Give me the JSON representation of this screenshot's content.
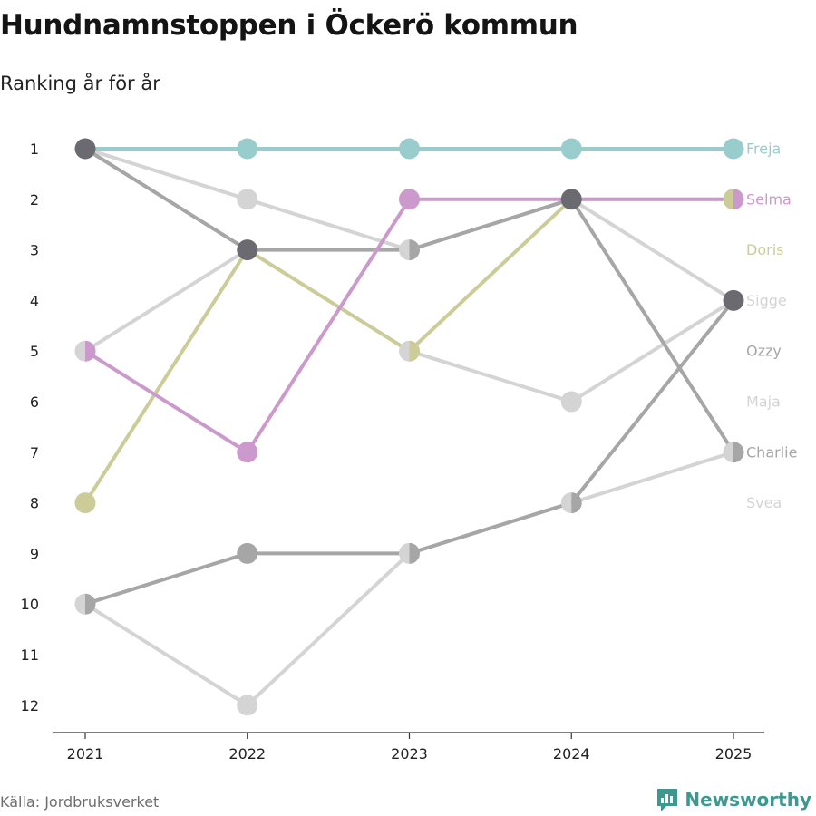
{
  "header": {
    "title": "Hundnamnstoppen i Öckerö kommun",
    "subtitle": "Ranking år för år"
  },
  "footer": {
    "source": "Källa: Jordbruksverket",
    "brand": "Newsworthy"
  },
  "colors": {
    "Freja": "#99cccc",
    "Selma": "#cc99cc",
    "Doris": "#cccc99",
    "Sigge": "#d4d4d4",
    "Ozzy": "#a6a6a6",
    "Maja": "#d4d4d4",
    "Charlie": "#a6a6a6",
    "Svea": "#d4d4d4",
    "shared": "#6b6a71",
    "brand": "#3d9990"
  },
  "chart_data": {
    "type": "line",
    "title": "Hundnamnstoppen i Öckerö kommun",
    "subtitle": "Ranking år för år",
    "x": [
      "2021",
      "2022",
      "2023",
      "2024",
      "2025"
    ],
    "y_ticks": [
      "1",
      "2",
      "3",
      "4",
      "5",
      "6",
      "7",
      "8",
      "9",
      "10",
      "11",
      "12"
    ],
    "ylim": [
      1,
      12
    ],
    "y_reversed": true,
    "series": [
      {
        "name": "Svea",
        "values": [
          10,
          12,
          9,
          8,
          7
        ]
      },
      {
        "name": "Maja",
        "values": [
          1,
          2,
          3,
          2,
          4
        ]
      },
      {
        "name": "Sigge",
        "values": [
          5,
          3,
          5,
          6,
          4
        ]
      },
      {
        "name": "Ozzy",
        "values": [
          10,
          9,
          9,
          8,
          4
        ]
      },
      {
        "name": "Charlie",
        "values": [
          1,
          3,
          3,
          2,
          7
        ]
      },
      {
        "name": "Doris",
        "values": [
          8,
          3,
          5,
          2,
          2
        ]
      },
      {
        "name": "Selma",
        "values": [
          5,
          7,
          2,
          2,
          2
        ]
      },
      {
        "name": "Freja",
        "values": [
          1,
          1,
          1,
          1,
          1
        ]
      }
    ],
    "legend": [
      {
        "name": "Freja",
        "rank": 1
      },
      {
        "name": "Selma",
        "rank": 2
      },
      {
        "name": "Doris",
        "rank": 3
      },
      {
        "name": "Sigge",
        "rank": 4
      },
      {
        "name": "Ozzy",
        "rank": 5
      },
      {
        "name": "Maja",
        "rank": 6
      },
      {
        "name": "Charlie",
        "rank": 7
      },
      {
        "name": "Svea",
        "rank": 8
      }
    ]
  }
}
